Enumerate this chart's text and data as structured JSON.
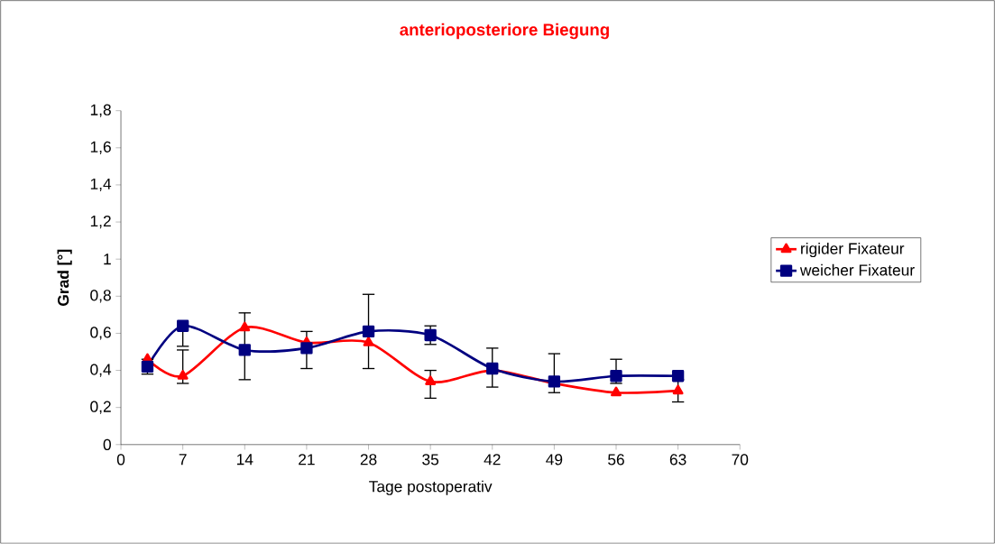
{
  "chart_data": {
    "type": "line",
    "title": "anterioposteriore Biegung",
    "xlabel": "Tage postoperativ",
    "ylabel": "Grad  [°]",
    "x": [
      3,
      7,
      14,
      21,
      28,
      35,
      42,
      49,
      56,
      63
    ],
    "series": [
      {
        "name": "rigider Fixateur",
        "color": "#ff0000",
        "marker": "triangle",
        "values": [
          0.46,
          0.37,
          0.63,
          0.55,
          0.55,
          0.34,
          0.4,
          0.33,
          0.28,
          0.29
        ],
        "errors": [
          null,
          [
            0.33,
            0.51
          ],
          null,
          null,
          null,
          [
            0.25,
            0.4
          ],
          null,
          null,
          null,
          0.06
        ]
      },
      {
        "name": "weicher Fixateur",
        "color": "#000080",
        "marker": "square",
        "values": [
          0.42,
          0.64,
          0.51,
          0.52,
          0.61,
          0.59,
          0.41,
          0.34,
          0.37,
          0.37
        ],
        "errors": [
          0.04,
          [
            0.53,
            0.64
          ],
          [
            0.35,
            0.71
          ],
          [
            0.41,
            0.61
          ],
          [
            0.41,
            0.81
          ],
          [
            0.54,
            0.64
          ],
          [
            0.31,
            0.52
          ],
          [
            0.28,
            0.49
          ],
          [
            0.33,
            0.46
          ],
          null
        ]
      }
    ],
    "xlim": [
      0,
      70
    ],
    "xticks": [
      0,
      7,
      14,
      21,
      28,
      35,
      42,
      49,
      56,
      63,
      70
    ],
    "ylim": [
      0,
      1.8
    ],
    "yticks": [
      {
        "value": 0,
        "label": "0"
      },
      {
        "value": 0.2,
        "label": "0,2"
      },
      {
        "value": 0.4,
        "label": "0,4"
      },
      {
        "value": 0.6,
        "label": "0,6"
      },
      {
        "value": 0.8,
        "label": "0,8"
      },
      {
        "value": 1,
        "label": "1"
      },
      {
        "value": 1.2,
        "label": "1,2"
      },
      {
        "value": 1.4,
        "label": "1,4"
      },
      {
        "value": 1.6,
        "label": "1,6"
      },
      {
        "value": 1.8,
        "label": "1,8"
      }
    ],
    "grid": false,
    "legend": "right"
  }
}
